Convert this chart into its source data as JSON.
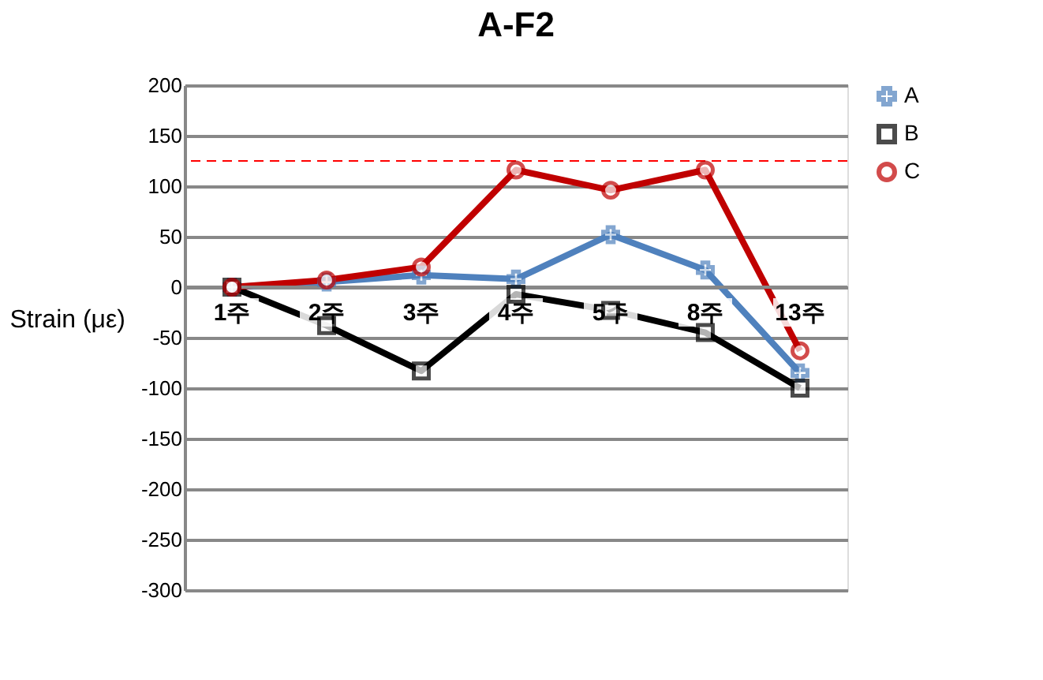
{
  "chart_data": {
    "type": "line",
    "title": "A-F2",
    "ylabel": "Strain (με)",
    "categories": [
      "1주",
      "2주",
      "3주",
      "4주",
      "5주",
      "8주",
      "13주"
    ],
    "series": [
      {
        "name": "A",
        "color": "#4f81bd",
        "marker": "cross",
        "values": [
          0,
          5,
          12,
          8,
          52,
          17,
          -85
        ]
      },
      {
        "name": "B",
        "color": "#000000",
        "marker": "square",
        "values": [
          0,
          -38,
          -83,
          -7,
          -23,
          -45,
          -100
        ]
      },
      {
        "name": "C",
        "color": "#c00000",
        "marker": "circle",
        "values": [
          0,
          7,
          20,
          116,
          96,
          116,
          -63
        ]
      }
    ],
    "ylim": [
      -300,
      200
    ],
    "yticks": [
      -300,
      -250,
      -200,
      -150,
      -100,
      -50,
      0,
      50,
      100,
      150,
      200
    ],
    "grid": "y",
    "legend": "right",
    "ref_lines": [
      {
        "axis": "y",
        "value": 125,
        "color": "#ff0000",
        "line_style": "dashed"
      }
    ]
  }
}
